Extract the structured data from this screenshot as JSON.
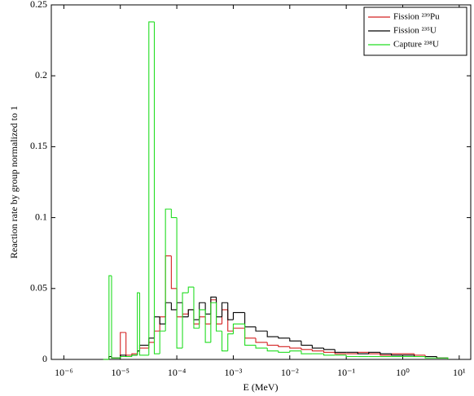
{
  "chart_data": {
    "type": "histogram",
    "xlabel": "E (MeV)",
    "ylabel": "Reaction rate by group normalized to 1",
    "xscale": "log",
    "xlim": [
      6e-07,
      16
    ],
    "ylim": [
      0,
      0.25
    ],
    "xticks": [
      {
        "value": 1e-06,
        "label": "10⁻⁶"
      },
      {
        "value": 1e-05,
        "label": "10⁻⁵"
      },
      {
        "value": 0.0001,
        "label": "10⁻⁴"
      },
      {
        "value": 0.001,
        "label": "10⁻³"
      },
      {
        "value": 0.01,
        "label": "10⁻²"
      },
      {
        "value": 0.1,
        "label": "10⁻¹"
      },
      {
        "value": 1,
        "label": "10⁰"
      },
      {
        "value": 10,
        "label": "10¹"
      }
    ],
    "yticks": [
      0,
      0.05,
      0.1,
      0.15,
      0.2,
      0.25
    ],
    "legend": "northeast",
    "bins": [
      5e-06,
      6.3e-06,
      7e-06,
      1e-05,
      1.26e-05,
      1.6e-05,
      2e-05,
      2.2e-05,
      3.2e-05,
      4e-05,
      5e-05,
      6.3e-05,
      8e-05,
      0.0001,
      0.000126,
      0.00016,
      0.0002,
      0.00025,
      0.00032,
      0.0004,
      0.0005,
      0.00063,
      0.0008,
      0.001,
      0.0016,
      0.0025,
      0.004,
      0.0063,
      0.01,
      0.016,
      0.025,
      0.04,
      0.063,
      0.1,
      0.16,
      0.25,
      0.4,
      0.63,
      1,
      1.6,
      2.5,
      4,
      6.3
    ],
    "series": [
      {
        "name": "Fission ²³⁹Pu",
        "color": "#d42020",
        "values": [
          0,
          0.002,
          0.001,
          0.019,
          0.003,
          0.004,
          0.006,
          0.008,
          0.012,
          0.02,
          0.03,
          0.073,
          0.05,
          0.03,
          0.032,
          0.035,
          0.025,
          0.03,
          0.025,
          0.042,
          0.025,
          0.035,
          0.02,
          0.022,
          0.015,
          0.012,
          0.01,
          0.009,
          0.008,
          0.007,
          0.006,
          0.005,
          0.004,
          0.004,
          0.005,
          0.004,
          0.003,
          0.004,
          0.004,
          0.003,
          0.002,
          0.001
        ]
      },
      {
        "name": "Fission ²³⁵U",
        "color": "#000000",
        "values": [
          0,
          0.002,
          0.001,
          0.003,
          0.002,
          0.003,
          0.006,
          0.01,
          0.015,
          0.03,
          0.025,
          0.04,
          0.035,
          0.04,
          0.03,
          0.035,
          0.028,
          0.04,
          0.032,
          0.044,
          0.03,
          0.04,
          0.028,
          0.033,
          0.023,
          0.02,
          0.016,
          0.015,
          0.013,
          0.01,
          0.008,
          0.007,
          0.005,
          0.005,
          0.004,
          0.005,
          0.004,
          0.003,
          0.003,
          0.002,
          0.002,
          0.001
        ]
      },
      {
        "name": "Capture ²³⁸U",
        "color": "#22dd22",
        "values": [
          0,
          0.059,
          0.001,
          0.002,
          0.002,
          0.003,
          0.047,
          0.003,
          0.238,
          0.004,
          0.02,
          0.106,
          0.1,
          0.008,
          0.047,
          0.051,
          0.022,
          0.035,
          0.012,
          0.04,
          0.02,
          0.006,
          0.018,
          0.025,
          0.01,
          0.008,
          0.006,
          0.005,
          0.006,
          0.004,
          0.004,
          0.003,
          0.003,
          0.002,
          0.002,
          0.002,
          0.002,
          0.002,
          0.002,
          0.002,
          0.001,
          0.001
        ]
      }
    ]
  }
}
